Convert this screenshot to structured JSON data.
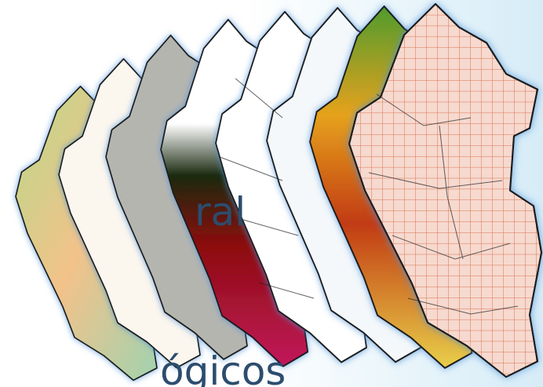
{
  "texts": {
    "fragment_1": "ral",
    "fragment_2": "ógicos"
  }
}
